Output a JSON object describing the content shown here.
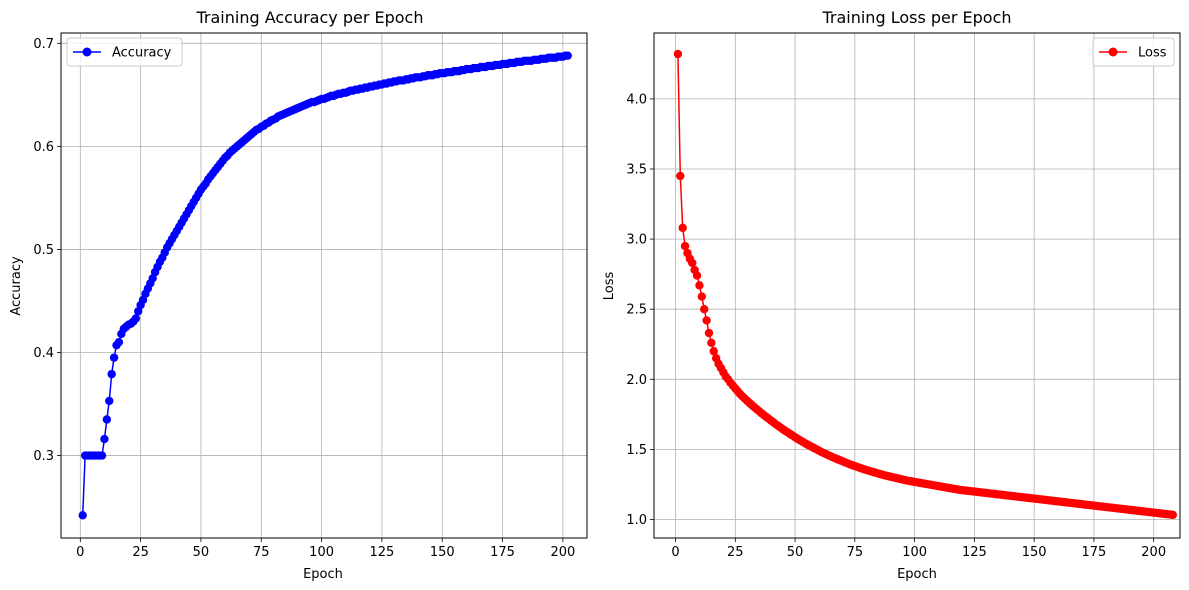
{
  "chart_data": [
    {
      "type": "line",
      "title": "Training Accuracy per Epoch",
      "xlabel": "Epoch",
      "ylabel": "Accuracy",
      "xlim": [
        -8,
        210
      ],
      "ylim": [
        0.22,
        0.71
      ],
      "xticks": [
        0,
        25,
        50,
        75,
        100,
        125,
        150,
        175,
        200
      ],
      "yticks": [
        0.3,
        0.4,
        0.5,
        0.6,
        0.7
      ],
      "ytick_labels": [
        "0.3",
        "0.4",
        "0.5",
        "0.6",
        "0.7"
      ],
      "grid": true,
      "legend_position": "top-left",
      "series": [
        {
          "name": "Accuracy",
          "color": "#0000ff",
          "marker": "circle",
          "x_start": 1,
          "x_step": 1,
          "values": [
            0.242,
            0.3,
            0.3,
            0.3,
            0.3,
            0.3,
            0.3,
            0.3,
            0.3,
            0.316,
            0.335,
            0.353,
            0.379,
            0.395,
            0.407,
            0.41,
            0.418,
            0.423,
            0.425,
            0.427,
            0.428,
            0.43,
            0.433,
            0.44,
            0.446,
            0.451,
            0.457,
            0.462,
            0.467,
            0.472,
            0.478,
            0.483,
            0.488,
            0.492,
            0.497,
            0.502,
            0.506,
            0.51,
            0.514,
            0.518,
            0.522,
            0.526,
            0.53,
            0.534,
            0.538,
            0.542,
            0.546,
            0.55,
            0.554,
            0.558,
            0.561,
            0.564,
            0.568,
            0.571,
            0.574,
            0.577,
            0.58,
            0.583,
            0.586,
            0.589,
            0.591,
            0.594,
            0.596,
            0.598,
            0.6,
            0.602,
            0.604,
            0.606,
            0.608,
            0.61,
            0.612,
            0.614,
            0.616,
            0.617,
            0.619,
            0.62,
            0.622,
            0.623,
            0.625,
            0.626,
            0.627,
            0.629,
            0.63,
            0.631,
            0.632,
            0.633,
            0.634,
            0.635,
            0.636,
            0.637,
            0.638,
            0.639,
            0.64,
            0.641,
            0.642,
            0.643,
            0.643,
            0.644,
            0.645,
            0.646,
            0.646,
            0.647,
            0.648,
            0.649,
            0.649,
            0.65,
            0.651,
            0.651,
            0.652,
            0.652,
            0.653,
            0.654,
            0.654,
            0.655,
            0.655,
            0.656,
            0.656,
            0.657,
            0.657,
            0.658,
            0.658,
            0.659,
            0.659,
            0.66,
            0.66,
            0.661,
            0.661,
            0.662,
            0.662,
            0.663,
            0.663,
            0.664,
            0.664,
            0.664,
            0.665,
            0.665,
            0.666,
            0.666,
            0.667,
            0.667,
            0.667,
            0.668,
            0.668,
            0.669,
            0.669,
            0.669,
            0.67,
            0.67,
            0.671,
            0.671,
            0.671,
            0.672,
            0.672,
            0.672,
            0.673,
            0.673,
            0.673,
            0.674,
            0.674,
            0.675,
            0.675,
            0.675,
            0.676,
            0.676,
            0.676,
            0.677,
            0.677,
            0.677,
            0.678,
            0.678,
            0.678,
            0.679,
            0.679,
            0.679,
            0.68,
            0.68,
            0.68,
            0.681,
            0.681,
            0.681,
            0.682,
            0.682,
            0.682,
            0.683,
            0.683,
            0.683,
            0.683,
            0.684,
            0.684,
            0.684,
            0.685,
            0.685,
            0.685,
            0.686,
            0.686,
            0.686,
            0.686,
            0.687,
            0.687,
            0.687,
            0.688,
            0.688
          ]
        }
      ]
    },
    {
      "type": "line",
      "title": "Training Loss per Epoch",
      "xlabel": "Epoch",
      "ylabel": "Loss",
      "xlim": [
        -9,
        211
      ],
      "ylim": [
        0.868,
        4.47
      ],
      "xticks": [
        0,
        25,
        50,
        75,
        100,
        125,
        150,
        175,
        200
      ],
      "yticks": [
        1.0,
        1.5,
        2.0,
        2.5,
        3.0,
        3.5,
        4.0
      ],
      "ytick_labels": [
        "1.0",
        "1.5",
        "2.0",
        "2.5",
        "3.0",
        "3.5",
        "4.0"
      ],
      "grid": true,
      "legend_position": "top-right",
      "series": [
        {
          "name": "Loss",
          "color": "#ff0000",
          "marker": "circle",
          "x_start": 1,
          "x_step": 1,
          "values": [
            4.32,
            3.45,
            3.08,
            2.95,
            2.9,
            2.86,
            2.83,
            2.78,
            2.74,
            2.67,
            2.59,
            2.5,
            2.42,
            2.33,
            2.26,
            2.2,
            2.15,
            2.11,
            2.08,
            2.05,
            2.02,
            2.0,
            1.975,
            1.955,
            1.935,
            1.915,
            1.895,
            1.878,
            1.862,
            1.846,
            1.83,
            1.815,
            1.8,
            1.786,
            1.772,
            1.758,
            1.744,
            1.731,
            1.718,
            1.705,
            1.692,
            1.679,
            1.667,
            1.655,
            1.643,
            1.631,
            1.62,
            1.609,
            1.598,
            1.587,
            1.576,
            1.566,
            1.556,
            1.546,
            1.536,
            1.527,
            1.518,
            1.509,
            1.5,
            1.491,
            1.482,
            1.474,
            1.466,
            1.458,
            1.45,
            1.442,
            1.435,
            1.428,
            1.421,
            1.414,
            1.407,
            1.4,
            1.393,
            1.387,
            1.381,
            1.375,
            1.369,
            1.363,
            1.357,
            1.352,
            1.347,
            1.342,
            1.337,
            1.332,
            1.327,
            1.322,
            1.317,
            1.313,
            1.309,
            1.305,
            1.301,
            1.297,
            1.293,
            1.289,
            1.285,
            1.281,
            1.277,
            1.274,
            1.271,
            1.268,
            1.265,
            1.262,
            1.259,
            1.256,
            1.253,
            1.25,
            1.247,
            1.244,
            1.241,
            1.238,
            1.235,
            1.232,
            1.229,
            1.226,
            1.223,
            1.22,
            1.217,
            1.214,
            1.211,
            1.209,
            1.207,
            1.205,
            1.203,
            1.201,
            1.199,
            1.197,
            1.195,
            1.193,
            1.191,
            1.189,
            1.187,
            1.185,
            1.183,
            1.181,
            1.179,
            1.177,
            1.175,
            1.173,
            1.171,
            1.169,
            1.167,
            1.165,
            1.163,
            1.161,
            1.159,
            1.157,
            1.155,
            1.153,
            1.151,
            1.149,
            1.147,
            1.145,
            1.143,
            1.141,
            1.139,
            1.137,
            1.135,
            1.133,
            1.131,
            1.129,
            1.127,
            1.125,
            1.123,
            1.121,
            1.119,
            1.117,
            1.115,
            1.113,
            1.111,
            1.109,
            1.107,
            1.105,
            1.103,
            1.101,
            1.099,
            1.097,
            1.095,
            1.093,
            1.091,
            1.089,
            1.087,
            1.085,
            1.083,
            1.081,
            1.079,
            1.077,
            1.075,
            1.073,
            1.071,
            1.069,
            1.067,
            1.065,
            1.063,
            1.061,
            1.059,
            1.057,
            1.055,
            1.053,
            1.051,
            1.049,
            1.047,
            1.045,
            1.043,
            1.041,
            1.039,
            1.037,
            1.035,
            1.033
          ]
        }
      ]
    }
  ]
}
